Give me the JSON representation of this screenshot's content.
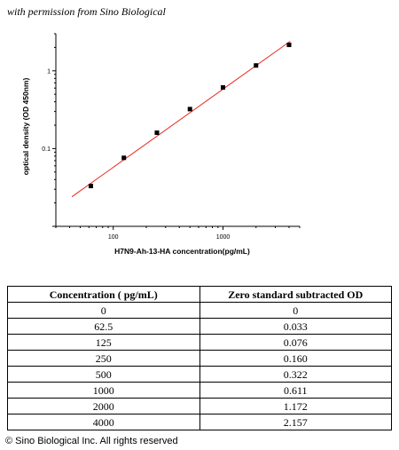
{
  "caption": "with permission from Sino Biological",
  "chart_data": {
    "type": "scatter",
    "xscale": "log",
    "yscale": "log",
    "xlabel": "H7N9-Ah-13-HA  concentration(pg/mL)",
    "ylabel": "optical density (OD 450nm)",
    "xlim": [
      30,
      5000
    ],
    "ylim": [
      0.01,
      3
    ],
    "x_ticks": [
      {
        "value": 100,
        "label": "100"
      },
      {
        "value": 1000,
        "label": "1000"
      }
    ],
    "y_ticks": [
      {
        "value": 0.1,
        "label": "0.1"
      },
      {
        "value": 1,
        "label": "1"
      }
    ],
    "points": [
      {
        "x": 62.5,
        "y": 0.033
      },
      {
        "x": 125,
        "y": 0.076
      },
      {
        "x": 250,
        "y": 0.16
      },
      {
        "x": 500,
        "y": 0.322
      },
      {
        "x": 1000,
        "y": 0.611
      },
      {
        "x": 2000,
        "y": 1.172
      },
      {
        "x": 4000,
        "y": 2.157
      }
    ],
    "fit_line": {
      "x": [
        42,
        4100
      ],
      "y": [
        0.024,
        2.4
      ]
    },
    "colors": {
      "points": "#000000",
      "fit": "#e8281e",
      "axes": "#000000"
    }
  },
  "table": {
    "headers": [
      "Concentration ( pg/mL)",
      "Zero standard subtracted OD"
    ],
    "rows": [
      [
        "0",
        "0"
      ],
      [
        "62.5",
        "0.033"
      ],
      [
        "125",
        "0.076"
      ],
      [
        "250",
        "0.160"
      ],
      [
        "500",
        "0.322"
      ],
      [
        "1000",
        "0.611"
      ],
      [
        "2000",
        "1.172"
      ],
      [
        "4000",
        "2.157"
      ]
    ]
  },
  "footer": "© Sino Biological Inc. All rights reserved"
}
